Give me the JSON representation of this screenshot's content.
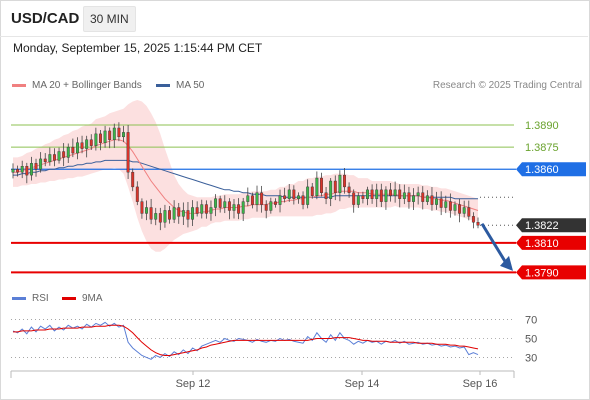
{
  "header": {
    "symbol": "USD/CAD",
    "timeframe": "30 MIN"
  },
  "datetime": "Monday, September 15, 2025 1:15:44 PM CET",
  "legend": {
    "ma20": {
      "label": "MA 20 + Bollinger Bands",
      "color": "#f08080"
    },
    "ma50": {
      "label": "MA 50",
      "color": "#3a5f9a"
    },
    "rsi": {
      "label": "RSI",
      "color": "#5b7fd6"
    },
    "ma9": {
      "label": "9MA",
      "color": "#e00000"
    }
  },
  "copyright": "Research © 2025 Trading Central",
  "chart_data": [
    {
      "type": "line",
      "title": "",
      "x_labels": [
        "Sep 12",
        "Sep 14",
        "Sep 16"
      ],
      "ylim": [
        1.3778,
        1.3907
      ],
      "current_price": {
        "value": "1.3822",
        "color": "#333333"
      },
      "levels": [
        {
          "label": "1.3890",
          "value": 1.389,
          "kind": "target",
          "color": "#8cc152"
        },
        {
          "label": "1.3875",
          "value": 1.3875,
          "kind": "target",
          "color": "#8cc152"
        },
        {
          "label": "1.3860",
          "value": 1.386,
          "kind": "pivot",
          "color": "#1f6fe5"
        },
        {
          "label": "1.3810",
          "value": 1.381,
          "kind": "support",
          "color": "#e80000"
        },
        {
          "label": "1.3790",
          "value": 1.379,
          "kind": "support",
          "color": "#e80000"
        }
      ],
      "price_series": [
        1.386,
        1.3858,
        1.3862,
        1.3856,
        1.3864,
        1.386,
        1.3867,
        1.3865,
        1.387,
        1.3866,
        1.3872,
        1.3868,
        1.3875,
        1.3871,
        1.3878,
        1.3874,
        1.388,
        1.3876,
        1.3884,
        1.3878,
        1.3886,
        1.388,
        1.3888,
        1.3882,
        1.3885,
        1.3858,
        1.3848,
        1.3838,
        1.383,
        1.3834,
        1.3826,
        1.383,
        1.3824,
        1.3832,
        1.3826,
        1.3834,
        1.3828,
        1.3832,
        1.3826,
        1.3834,
        1.383,
        1.3836,
        1.383,
        1.3834,
        1.384,
        1.3834,
        1.3838,
        1.3832,
        1.3836,
        1.383,
        1.3838,
        1.3842,
        1.3836,
        1.3844,
        1.3836,
        1.3832,
        1.3838,
        1.3836,
        1.3842,
        1.384,
        1.3846,
        1.384,
        1.3842,
        1.3836,
        1.3848,
        1.3842,
        1.3854,
        1.3844,
        1.384,
        1.3852,
        1.3844,
        1.3856,
        1.3848,
        1.3844,
        1.3836,
        1.3842,
        1.384,
        1.3846,
        1.384,
        1.3846,
        1.3838,
        1.3846,
        1.3842,
        1.3846,
        1.384,
        1.3844,
        1.3838,
        1.3842,
        1.3844,
        1.3838,
        1.3842,
        1.3836,
        1.384,
        1.3834,
        1.3838,
        1.3832,
        1.3836,
        1.383,
        1.3834,
        1.3828,
        1.3824,
        1.3822
      ],
      "ma20": [
        1.3858,
        1.3858,
        1.3859,
        1.386,
        1.3861,
        1.3862,
        1.3863,
        1.3864,
        1.3865,
        1.3866,
        1.3867,
        1.3868,
        1.3869,
        1.387,
        1.3871,
        1.3872,
        1.3873,
        1.3874,
        1.3876,
        1.3877,
        1.3878,
        1.3879,
        1.388,
        1.388,
        1.3879,
        1.3876,
        1.3872,
        1.3867,
        1.3862,
        1.3857,
        1.3852,
        1.3848,
        1.3844,
        1.384,
        1.3837,
        1.3834,
        1.3832,
        1.3831,
        1.383,
        1.383,
        1.383,
        1.3831,
        1.3831,
        1.3832,
        1.3833,
        1.3833,
        1.3834,
        1.3834,
        1.3834,
        1.3834,
        1.3835,
        1.3835,
        1.3836,
        1.3836,
        1.3836,
        1.3836,
        1.3837,
        1.3837,
        1.3838,
        1.3838,
        1.3839,
        1.3839,
        1.384,
        1.384,
        1.3841,
        1.3841,
        1.3842,
        1.3842,
        1.3843,
        1.3843,
        1.3844,
        1.3845,
        1.3845,
        1.3845,
        1.3845,
        1.3844,
        1.3844,
        1.3844,
        1.3843,
        1.3843,
        1.3843,
        1.3843,
        1.3843,
        1.3843,
        1.3842,
        1.3842,
        1.3842,
        1.3842,
        1.3842,
        1.3841,
        1.3841,
        1.384,
        1.384,
        1.3839,
        1.3839,
        1.3838,
        1.3837,
        1.3836,
        1.3835,
        1.3834,
        1.3833,
        1.3832
      ],
      "ma50": [
        1.3856,
        1.3856,
        1.3857,
        1.3857,
        1.3858,
        1.3858,
        1.3859,
        1.3859,
        1.386,
        1.386,
        1.3861,
        1.3861,
        1.3862,
        1.3862,
        1.3863,
        1.3863,
        1.3864,
        1.3864,
        1.3865,
        1.3865,
        1.3866,
        1.3866,
        1.3866,
        1.3866,
        1.3866,
        1.3866,
        1.3865,
        1.3865,
        1.3864,
        1.3863,
        1.3862,
        1.3861,
        1.386,
        1.3859,
        1.3858,
        1.3857,
        1.3856,
        1.3855,
        1.3854,
        1.3853,
        1.3852,
        1.3851,
        1.385,
        1.3849,
        1.3848,
        1.3847,
        1.3846,
        1.3846,
        1.3845,
        1.3845,
        1.3844,
        1.3844,
        1.3843,
        1.3843,
        1.3843,
        1.3842,
        1.3842,
        1.3842,
        1.3842,
        1.3841,
        1.3841,
        1.3841,
        1.3841,
        1.3841,
        1.3841,
        1.3841,
        1.3841,
        1.3841,
        1.3841,
        1.3841,
        1.3842,
        1.3842,
        1.3842,
        1.3842,
        1.3842,
        1.3842,
        1.3842,
        1.3842,
        1.3842,
        1.3842,
        1.3842,
        1.3842,
        1.3842,
        1.3842,
        1.3842,
        1.3842,
        1.3842,
        1.3842,
        1.3842,
        1.3841,
        1.3841,
        1.3841,
        1.3841,
        1.3841,
        1.3841,
        1.3841,
        1.384,
        1.384,
        1.384,
        1.384,
        1.384,
        1.384
      ],
      "bb_width": [
        0.001,
        0.001,
        0.001,
        0.0011,
        0.0011,
        0.0012,
        0.0012,
        0.0013,
        0.0013,
        0.0014,
        0.0014,
        0.0015,
        0.0015,
        0.0016,
        0.0016,
        0.0017,
        0.0017,
        0.0017,
        0.0018,
        0.0018,
        0.0018,
        0.0019,
        0.0019,
        0.002,
        0.0022,
        0.0028,
        0.0034,
        0.004,
        0.0044,
        0.0046,
        0.0046,
        0.0044,
        0.004,
        0.0034,
        0.0028,
        0.0022,
        0.0018,
        0.0015,
        0.0013,
        0.0012,
        0.0011,
        0.001,
        0.001,
        0.0009,
        0.0009,
        0.0009,
        0.0009,
        0.0009,
        0.0009,
        0.0009,
        0.0009,
        0.0009,
        0.0009,
        0.0009,
        0.0009,
        0.0009,
        0.0009,
        0.0009,
        0.001,
        0.001,
        0.0011,
        0.0011,
        0.0012,
        0.0012,
        0.0013,
        0.0013,
        0.0013,
        0.0013,
        0.0013,
        0.0013,
        0.0013,
        0.0012,
        0.0012,
        0.0011,
        0.0011,
        0.001,
        0.001,
        0.001,
        0.0009,
        0.0009,
        0.0009,
        0.0009,
        0.0009,
        0.0008,
        0.0008,
        0.0008,
        0.0008,
        0.0008,
        0.0008,
        0.0008,
        0.0008,
        0.0008,
        0.0008,
        0.0008,
        0.0008,
        0.0008,
        0.0008,
        0.0008,
        0.0008,
        0.0008,
        0.0008,
        0.0008
      ]
    },
    {
      "type": "line",
      "title": "",
      "yticks": [
        "70",
        "50",
        "30"
      ],
      "ylim": [
        22,
        78
      ],
      "x_labels": [
        "Sep 12",
        "Sep 14",
        "Sep 16"
      ],
      "rsi": [
        58,
        56,
        60,
        55,
        62,
        57,
        63,
        60,
        64,
        58,
        62,
        59,
        64,
        61,
        63,
        60,
        65,
        62,
        66,
        64,
        67,
        63,
        66,
        62,
        64,
        46,
        40,
        36,
        32,
        30,
        28,
        32,
        30,
        34,
        31,
        36,
        33,
        38,
        34,
        40,
        37,
        42,
        44,
        46,
        48,
        46,
        50,
        48,
        47,
        50,
        49,
        48,
        46,
        49,
        47,
        46,
        48,
        47,
        50,
        48,
        49,
        47,
        46,
        45,
        52,
        48,
        56,
        50,
        46,
        54,
        48,
        56,
        50,
        48,
        44,
        47,
        45,
        48,
        46,
        47,
        44,
        47,
        46,
        48,
        45,
        47,
        44,
        45,
        46,
        44,
        45,
        43,
        44,
        42,
        43,
        41,
        42,
        40,
        41,
        33,
        35,
        33
      ],
      "ma9": [
        57,
        57,
        58,
        58,
        58,
        59,
        59,
        59,
        60,
        60,
        60,
        61,
        61,
        61,
        61,
        62,
        62,
        62,
        63,
        63,
        63,
        64,
        64,
        64,
        63,
        60,
        56,
        51,
        46,
        42,
        38,
        35,
        33,
        32,
        32,
        33,
        34,
        35,
        36,
        37,
        38,
        40,
        41,
        43,
        44,
        45,
        46,
        47,
        48,
        48,
        48,
        48,
        48,
        48,
        48,
        48,
        48,
        48,
        48,
        48,
        48,
        48,
        48,
        48,
        48,
        49,
        50,
        50,
        50,
        50,
        51,
        51,
        51,
        51,
        50,
        49,
        48,
        48,
        47,
        47,
        47,
        47,
        46,
        46,
        46,
        46,
        46,
        46,
        45,
        45,
        45,
        45,
        44,
        44,
        44,
        43,
        43,
        42,
        42,
        41,
        40,
        39
      ]
    }
  ]
}
